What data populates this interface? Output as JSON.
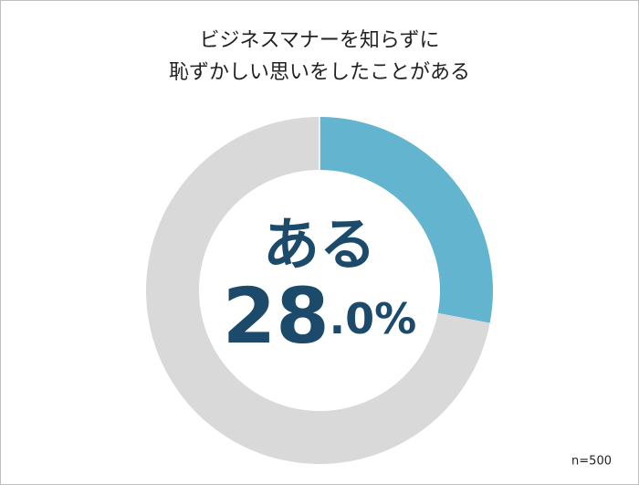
{
  "chart_data": {
    "type": "donut",
    "title": [
      "ビジネスマナーを知らずに",
      "恥ずかしい思いをしたことがある"
    ],
    "categories": [
      "ある",
      null
    ],
    "values": [
      28.0,
      72.0
    ],
    "value_labels": [
      "28.0%",
      null
    ],
    "colors": [
      "#63b4cf",
      "#d9d9d9"
    ],
    "note": "n=500"
  }
}
